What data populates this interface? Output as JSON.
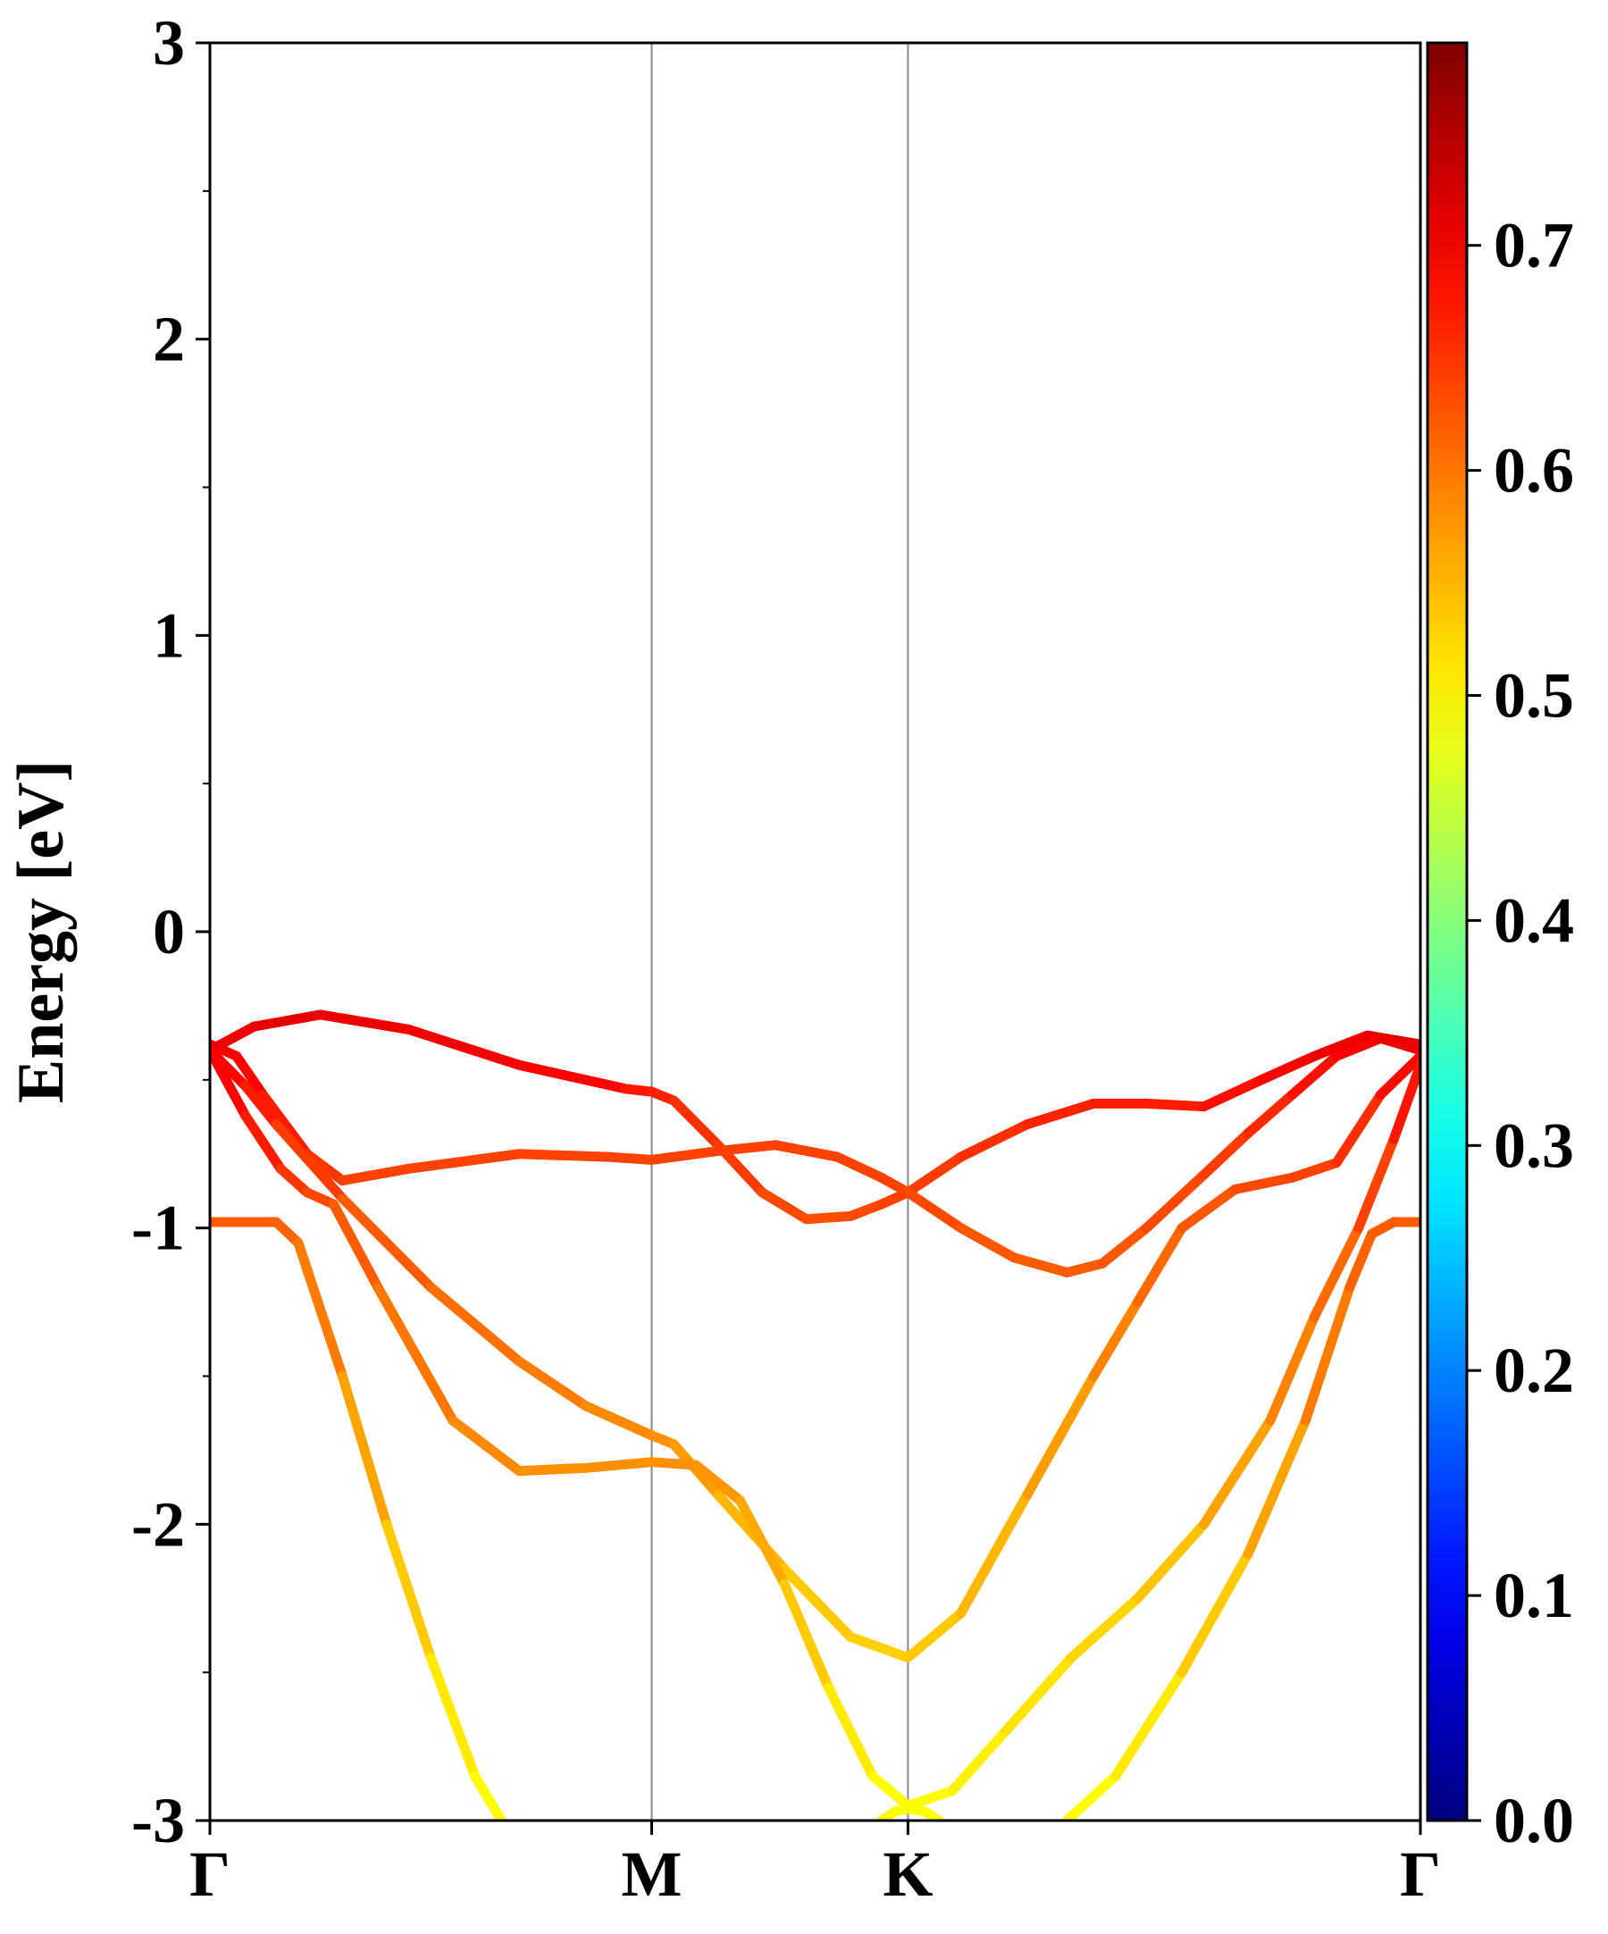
{
  "chart_data": {
    "type": "line",
    "title": "",
    "xlabel": "",
    "ylabel": "Energy [eV]",
    "ylim": [
      -3,
      3
    ],
    "y_ticks": [
      "-3",
      "-2",
      "-1",
      "0",
      "1",
      "2",
      "3"
    ],
    "y_tick_values": [
      -3,
      -2,
      -1,
      0,
      1,
      2,
      3
    ],
    "y_minor_step": 0.5,
    "x_ticks": [
      "Γ",
      "M",
      "K",
      "Γ"
    ],
    "x_tick_positions": [
      0,
      1,
      1.58,
      2.74
    ],
    "xlim": [
      0,
      2.74
    ],
    "grid": false,
    "vlines_at": [
      1,
      1.58
    ],
    "colorbar": {
      "min": 0.0,
      "max": 0.79,
      "tick_values": [
        0.0,
        0.1,
        0.2,
        0.3,
        0.4,
        0.5,
        0.6,
        0.7
      ],
      "tick_labels": [
        "0.0",
        "0.1",
        "0.2",
        "0.3",
        "0.4",
        "0.5",
        "0.6",
        "0.7"
      ],
      "colormap": "jet"
    },
    "series": [
      {
        "points": [
          [
            0,
            -0.4,
            0.7
          ],
          [
            0.1,
            -0.32,
            0.71
          ],
          [
            0.25,
            -0.28,
            0.71
          ],
          [
            0.45,
            -0.33,
            0.7
          ],
          [
            0.7,
            -0.45,
            0.7
          ],
          [
            0.94,
            -0.53,
            0.68
          ],
          [
            1.0,
            -0.54,
            0.67
          ],
          [
            1.05,
            -0.57,
            0.66
          ],
          [
            1.15,
            -0.72,
            0.65
          ],
          [
            1.25,
            -0.88,
            0.64
          ],
          [
            1.35,
            -0.97,
            0.63
          ],
          [
            1.45,
            -0.96,
            0.63
          ],
          [
            1.52,
            -0.92,
            0.64
          ],
          [
            1.58,
            -0.88,
            0.64
          ],
          [
            1.7,
            -0.76,
            0.65
          ],
          [
            1.85,
            -0.65,
            0.66
          ],
          [
            2.0,
            -0.58,
            0.67
          ],
          [
            2.12,
            -0.58,
            0.67
          ],
          [
            2.25,
            -0.59,
            0.67
          ],
          [
            2.38,
            -0.5,
            0.69
          ],
          [
            2.5,
            -0.42,
            0.7
          ],
          [
            2.62,
            -0.35,
            0.71
          ],
          [
            2.74,
            -0.38,
            0.71
          ]
        ]
      },
      {
        "points": [
          [
            0,
            -0.38,
            0.7
          ],
          [
            0.06,
            -0.42,
            0.7
          ],
          [
            0.12,
            -0.55,
            0.68
          ],
          [
            0.22,
            -0.75,
            0.66
          ],
          [
            0.3,
            -0.84,
            0.64
          ],
          [
            0.45,
            -0.8,
            0.64
          ],
          [
            0.7,
            -0.75,
            0.64
          ],
          [
            0.9,
            -0.76,
            0.64
          ],
          [
            1.0,
            -0.77,
            0.64
          ],
          [
            1.15,
            -0.74,
            0.64
          ],
          [
            1.28,
            -0.72,
            0.64
          ],
          [
            1.42,
            -0.76,
            0.64
          ],
          [
            1.52,
            -0.83,
            0.64
          ],
          [
            1.58,
            -0.88,
            0.64
          ],
          [
            1.7,
            -1.0,
            0.63
          ],
          [
            1.82,
            -1.1,
            0.62
          ],
          [
            1.94,
            -1.15,
            0.62
          ],
          [
            2.02,
            -1.12,
            0.62
          ],
          [
            2.12,
            -1.0,
            0.63
          ],
          [
            2.25,
            -0.82,
            0.64
          ],
          [
            2.35,
            -0.68,
            0.65
          ],
          [
            2.45,
            -0.55,
            0.67
          ],
          [
            2.55,
            -0.42,
            0.69
          ],
          [
            2.65,
            -0.36,
            0.7
          ],
          [
            2.74,
            -0.4,
            0.71
          ]
        ]
      },
      {
        "points": [
          [
            0,
            -0.4,
            0.7
          ],
          [
            0.08,
            -0.52,
            0.68
          ],
          [
            0.15,
            -0.65,
            0.66
          ],
          [
            0.3,
            -0.9,
            0.63
          ],
          [
            0.5,
            -1.2,
            0.61
          ],
          [
            0.7,
            -1.45,
            0.6
          ],
          [
            0.85,
            -1.6,
            0.59
          ],
          [
            1.0,
            -1.7,
            0.58
          ],
          [
            1.05,
            -1.73,
            0.58
          ],
          [
            1.15,
            -1.9,
            0.56
          ],
          [
            1.3,
            -2.15,
            0.54
          ],
          [
            1.45,
            -2.38,
            0.53
          ],
          [
            1.58,
            -2.45,
            0.53
          ],
          [
            1.7,
            -2.3,
            0.54
          ],
          [
            1.85,
            -1.9,
            0.56
          ],
          [
            2.0,
            -1.5,
            0.58
          ],
          [
            2.1,
            -1.25,
            0.6
          ],
          [
            2.2,
            -1.0,
            0.62
          ],
          [
            2.32,
            -0.87,
            0.63
          ],
          [
            2.45,
            -0.83,
            0.64
          ],
          [
            2.55,
            -0.78,
            0.64
          ],
          [
            2.65,
            -0.55,
            0.67
          ],
          [
            2.74,
            -0.42,
            0.7
          ]
        ]
      },
      {
        "points": [
          [
            0,
            -0.4,
            0.7
          ],
          [
            0.08,
            -0.62,
            0.68
          ],
          [
            0.16,
            -0.8,
            0.66
          ],
          [
            0.22,
            -0.88,
            0.64
          ],
          [
            0.28,
            -0.92,
            0.63
          ],
          [
            0.38,
            -1.2,
            0.61
          ],
          [
            0.55,
            -1.65,
            0.59
          ],
          [
            0.7,
            -1.82,
            0.58
          ],
          [
            0.85,
            -1.81,
            0.58
          ],
          [
            1.0,
            -1.79,
            0.58
          ],
          [
            1.1,
            -1.8,
            0.58
          ],
          [
            1.2,
            -1.92,
            0.57
          ],
          [
            1.3,
            -2.2,
            0.55
          ],
          [
            1.4,
            -2.55,
            0.52
          ],
          [
            1.5,
            -2.85,
            0.5
          ],
          [
            1.58,
            -2.95,
            0.49
          ],
          [
            1.68,
            -2.9,
            0.5
          ],
          [
            1.8,
            -2.7,
            0.51
          ],
          [
            1.95,
            -2.45,
            0.52
          ],
          [
            2.1,
            -2.25,
            0.53
          ],
          [
            2.25,
            -2.0,
            0.55
          ],
          [
            2.4,
            -1.65,
            0.58
          ],
          [
            2.5,
            -1.3,
            0.6
          ],
          [
            2.6,
            -1.0,
            0.62
          ],
          [
            2.68,
            -0.7,
            0.66
          ],
          [
            2.74,
            -0.45,
            0.69
          ]
        ]
      },
      {
        "points": [
          [
            0,
            -0.98,
            0.62
          ],
          [
            0.15,
            -0.98,
            0.62
          ],
          [
            0.2,
            -1.05,
            0.61
          ],
          [
            0.3,
            -1.5,
            0.58
          ],
          [
            0.4,
            -2.0,
            0.55
          ],
          [
            0.5,
            -2.45,
            0.52
          ],
          [
            0.6,
            -2.85,
            0.5
          ],
          [
            0.66,
            -3.0,
            0.49
          ]
        ]
      },
      {
        "points": [
          [
            1.52,
            -3.0,
            0.49
          ],
          [
            1.55,
            -2.97,
            0.49
          ],
          [
            1.58,
            -2.96,
            0.49
          ],
          [
            1.62,
            -2.97,
            0.49
          ],
          [
            1.65,
            -3.0,
            0.49
          ]
        ]
      },
      {
        "points": [
          [
            1.94,
            -3.0,
            0.49
          ],
          [
            2.05,
            -2.85,
            0.5
          ],
          [
            2.2,
            -2.5,
            0.52
          ],
          [
            2.35,
            -2.1,
            0.55
          ],
          [
            2.48,
            -1.65,
            0.58
          ],
          [
            2.58,
            -1.2,
            0.61
          ],
          [
            2.63,
            -1.02,
            0.62
          ],
          [
            2.68,
            -0.98,
            0.62
          ],
          [
            2.74,
            -0.98,
            0.62
          ]
        ]
      }
    ]
  }
}
